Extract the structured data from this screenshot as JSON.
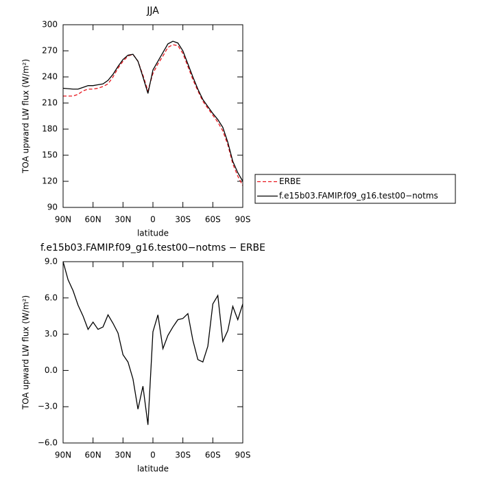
{
  "chart_data": [
    {
      "type": "line",
      "title": "JJA",
      "x_label": "latitude",
      "y_label": "TOA upward LW flux (W/m²)",
      "x": [
        90,
        85,
        80,
        75,
        70,
        65,
        60,
        55,
        50,
        45,
        40,
        35,
        30,
        25,
        20,
        15,
        10,
        5,
        0,
        -5,
        -10,
        -15,
        -20,
        -25,
        -30,
        -35,
        -40,
        -45,
        -50,
        -55,
        -60,
        -65,
        -70,
        -75,
        -80,
        -85,
        -90
      ],
      "series": [
        {
          "name": "ERBE",
          "color": "#e8141c",
          "line_style": "dashed",
          "values": [
            218,
            218,
            218,
            220,
            224,
            226,
            226,
            227,
            229,
            232,
            240,
            250,
            258,
            264,
            266,
            258,
            242,
            224,
            244,
            255,
            264,
            274,
            277,
            276,
            267,
            252,
            237,
            224,
            212,
            204,
            196,
            188,
            178,
            162,
            140,
            126,
            115
          ]
        },
        {
          "name": "f.e15b03.FAMIP.f09_g16.test00−notms",
          "color": "#000000",
          "line_style": "solid",
          "values": [
            227,
            226.5,
            226,
            226,
            228,
            230,
            230,
            231,
            232,
            236,
            243,
            252,
            260,
            265,
            266,
            258,
            240,
            221,
            248,
            258,
            268,
            278,
            281,
            279,
            270,
            255,
            240,
            226,
            214,
            206,
            198,
            191,
            182,
            165,
            143,
            130,
            120
          ]
        }
      ],
      "xlim": [
        90,
        -90
      ],
      "xticks": [
        {
          "value": 90,
          "label": "90N"
        },
        {
          "value": 60,
          "label": "60N"
        },
        {
          "value": 30,
          "label": "30N"
        },
        0,
        {
          "value": -30,
          "label": "30S"
        },
        {
          "value": -60,
          "label": "60S"
        },
        {
          "value": -90,
          "label": "90S"
        }
      ],
      "ylim": [
        90,
        300
      ],
      "yticks": [
        90,
        120,
        150,
        180,
        210,
        240,
        270,
        300
      ],
      "legend": "right"
    },
    {
      "type": "line",
      "title": "f.e15b03.FAMIP.f09_g16.test00−notms − ERBE",
      "x_label": "latitude",
      "y_label": "TOA upward LW flux (W/m²)",
      "x": [
        90,
        85,
        80,
        75,
        70,
        65,
        60,
        55,
        50,
        45,
        40,
        35,
        30,
        25,
        20,
        15,
        10,
        5,
        0,
        -5,
        -10,
        -15,
        -20,
        -25,
        -30,
        -35,
        -40,
        -45,
        -50,
        -55,
        -60,
        -65,
        -70,
        -75,
        -80,
        -85,
        -90
      ],
      "series": [
        {
          "color": "#000000",
          "line_style": "solid",
          "values": [
            9.0,
            7.5,
            6.6,
            5.4,
            4.5,
            3.4,
            4.0,
            3.4,
            3.6,
            4.6,
            3.9,
            3.1,
            1.3,
            0.7,
            -0.7,
            -3.2,
            -1.3,
            -4.5,
            3.2,
            4.6,
            1.8,
            2.9,
            3.6,
            4.2,
            4.3,
            4.7,
            2.5,
            0.9,
            0.7,
            2.0,
            5.5,
            6.2,
            2.4,
            3.3,
            5.3,
            4.2,
            5.5
          ]
        }
      ],
      "xlim": [
        90,
        -90
      ],
      "xticks": [
        {
          "value": 90,
          "label": "90N"
        },
        {
          "value": 60,
          "label": "60N"
        },
        {
          "value": 30,
          "label": "30N"
        },
        0,
        {
          "value": -30,
          "label": "30S"
        },
        {
          "value": -60,
          "label": "60S"
        },
        {
          "value": -90,
          "label": "90S"
        }
      ],
      "ylim": [
        -6,
        9
      ],
      "yticks": [
        {
          "value": -6,
          "label": "−6.0"
        },
        {
          "value": -3,
          "label": "−3.0"
        },
        {
          "value": 0,
          "label": "0.0"
        },
        {
          "value": 3,
          "label": "3.0"
        },
        {
          "value": 6,
          "label": "6.0"
        },
        {
          "value": 9,
          "label": "9.0"
        }
      ]
    }
  ]
}
